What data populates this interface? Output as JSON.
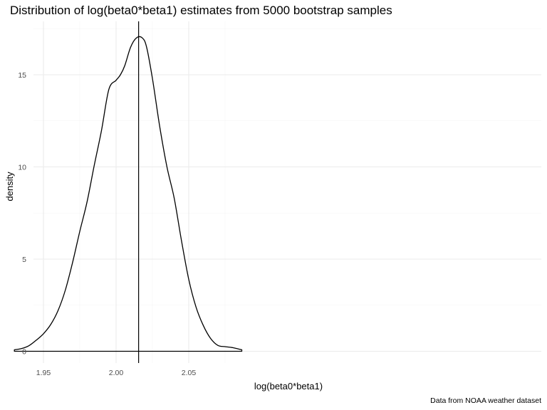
{
  "chart_data": {
    "type": "line",
    "title": "Distribution of log(beta0*beta1) estimates from 5000 bootstrap samples",
    "xlabel": "log(beta0*beta1)",
    "ylabel": "density",
    "caption": "Data from NOAA weather dataset",
    "xlim": [
      1.928,
      2.087
    ],
    "ylim": [
      0,
      17.2
    ],
    "x_ticks": [
      1.95,
      2.0,
      2.05
    ],
    "x_tick_labels": [
      "1.95",
      "2.00",
      "2.05"
    ],
    "y_ticks": [
      0,
      5,
      10,
      15
    ],
    "y_tick_labels": [
      "0",
      "5",
      "10",
      "15"
    ],
    "grid": true,
    "legend": "none",
    "vline": {
      "x": 2.0155
    },
    "series": [
      {
        "x": [
          1.93,
          1.935,
          1.94,
          1.945,
          1.95,
          1.955,
          1.96,
          1.965,
          1.97,
          1.975,
          1.98,
          1.985,
          1.99,
          1.995,
          2.0,
          2.003,
          2.006,
          2.01,
          2.014,
          2.018,
          2.021,
          2.025,
          2.03,
          2.035,
          2.04,
          2.045,
          2.05,
          2.055,
          2.06,
          2.065,
          2.07,
          2.075,
          2.08,
          2.0865
        ],
        "y": [
          0.08,
          0.15,
          0.3,
          0.6,
          0.95,
          1.45,
          2.2,
          3.3,
          4.8,
          6.5,
          8.1,
          10.1,
          12.0,
          14.2,
          14.7,
          15.0,
          15.5,
          16.5,
          17.0,
          17.0,
          16.5,
          14.8,
          12.2,
          10.0,
          8.3,
          6.0,
          3.9,
          2.4,
          1.4,
          0.7,
          0.32,
          0.25,
          0.2,
          0.08
        ]
      }
    ]
  }
}
